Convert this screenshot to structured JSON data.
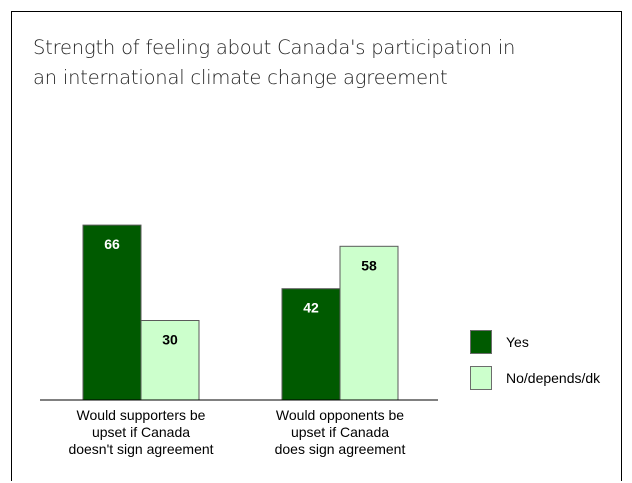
{
  "chart_data": {
    "type": "bar",
    "title": "Strength of feeling about Canada's participation in an international climate change agreement",
    "title_lines": [
      "Strength of feeling about Canada's participation in",
      "an international climate change agreement"
    ],
    "categories": [
      "Would supporters be upset if Canada doesn't sign agreement",
      "Would opponents be upset if Canada does sign agreement"
    ],
    "category_lines": [
      [
        "Would supporters be",
        "upset if Canada",
        "doesn't sign agreement"
      ],
      [
        "Would opponents be",
        "upset if Canada",
        "does sign agreement"
      ]
    ],
    "series": [
      {
        "name": "Yes",
        "values": [
          66,
          42
        ],
        "color": "#005a00",
        "label_color": "#ffffff"
      },
      {
        "name": "No/depends/dk",
        "values": [
          30,
          58
        ],
        "color": "#ccffcc",
        "label_color": "#000000"
      }
    ],
    "ylim": [
      0,
      100
    ],
    "xlabel": "",
    "ylabel": "",
    "grid": false,
    "legend_position": "right"
  }
}
